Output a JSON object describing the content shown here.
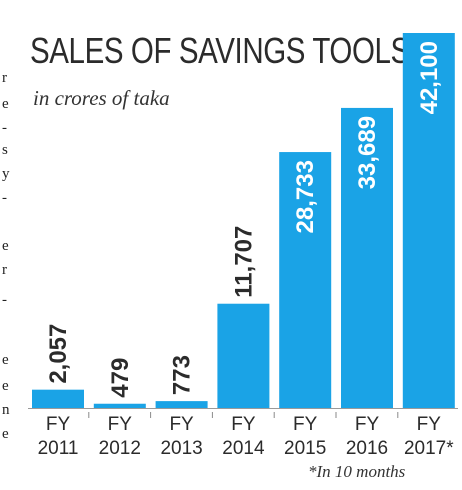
{
  "chart_data": {
    "type": "bar",
    "title": "SALES OF SAVINGS TOOLS",
    "subtitle": "in crores of taka",
    "categories": [
      [
        "FY",
        "2011"
      ],
      [
        "FY",
        "2012"
      ],
      [
        "FY",
        "2013"
      ],
      [
        "FY",
        "2014"
      ],
      [
        "FY",
        "2015"
      ],
      [
        "FY",
        "2016"
      ],
      [
        "FY",
        "2017*"
      ]
    ],
    "values": [
      2057,
      479,
      773,
      11707,
      28733,
      33689,
      42100
    ],
    "value_labels": [
      "2,057",
      "479",
      "773",
      "11,707",
      "28,733",
      "33,689",
      "42,100"
    ],
    "footnote": "*In 10 months",
    "xlabel": "",
    "ylabel": "",
    "ylim": [
      0,
      42100
    ],
    "grid": false,
    "legend": "none",
    "colors": {
      "bar": "#1aa3e6",
      "text": "#2b2b2b",
      "value_label_on_bar": "#ffffff"
    }
  },
  "edge_text": [
    "r",
    "e",
    "-",
    "s",
    "y",
    "-",
    "e",
    "r",
    "-",
    "e",
    "e",
    "n",
    "e"
  ]
}
